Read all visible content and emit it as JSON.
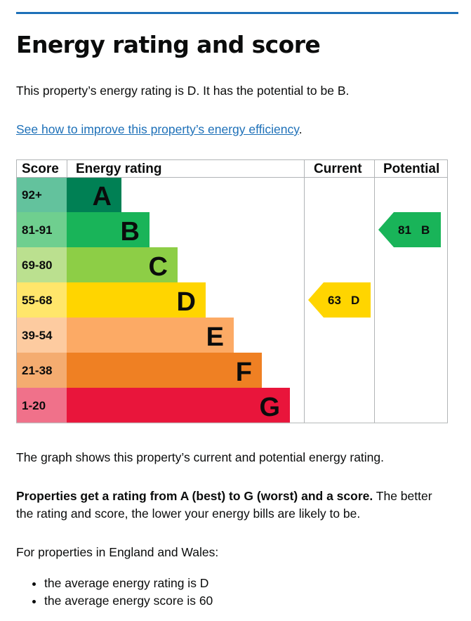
{
  "page": {
    "title": "Energy rating and score",
    "intro": "This property’s energy rating is D. It has the potential to be B.",
    "link_text": "See how to improve this property’s energy efficiency",
    "link_suffix": ".",
    "graph_caption": "The graph shows this property’s current and potential energy rating.",
    "explain_bold": "Properties get a rating from A (best) to G (worst) and a score.",
    "explain_rest": " The better the rating and score, the lower your energy bills are likely to be.",
    "region_intro": "For properties in England and Wales:",
    "bullets": [
      "the average energy rating is D",
      "the average energy score is 60"
    ]
  },
  "chart_data": {
    "type": "table",
    "columns": [
      "Score",
      "Energy rating",
      "Current",
      "Potential"
    ],
    "bands": [
      {
        "score": "92+",
        "rating": "A",
        "bar_color": "#008054",
        "score_color": "#63c29d"
      },
      {
        "score": "81-91",
        "rating": "B",
        "bar_color": "#19b459",
        "score_color": "#6fcf8f"
      },
      {
        "score": "69-80",
        "rating": "C",
        "bar_color": "#8dce46",
        "score_color": "#bbe08f"
      },
      {
        "score": "55-68",
        "rating": "D",
        "bar_color": "#ffd500",
        "score_color": "#ffe66b"
      },
      {
        "score": "39-54",
        "rating": "E",
        "bar_color": "#fcaa65",
        "score_color": "#fdcba0"
      },
      {
        "score": "21-38",
        "rating": "F",
        "bar_color": "#ef8023",
        "score_color": "#f4ac70"
      },
      {
        "score": "1-20",
        "rating": "G",
        "bar_color": "#e9153b",
        "score_color": "#f0718a"
      }
    ],
    "current": {
      "score": 63,
      "rating": "D",
      "color": "#ffd500"
    },
    "potential": {
      "score": 81,
      "rating": "B",
      "color": "#19b459"
    }
  }
}
